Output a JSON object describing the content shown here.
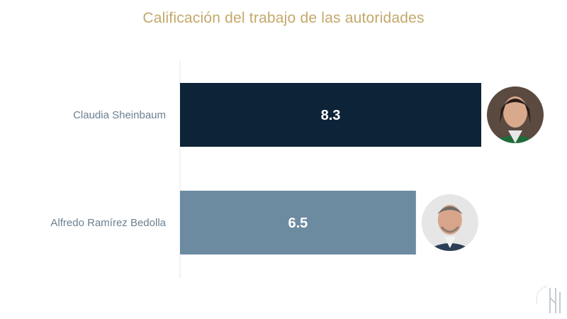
{
  "colors": {
    "title": "#c3a86a",
    "category_label": "#6b7f91",
    "bar_label": "#ffffff",
    "axis": "#e4e4e4",
    "logo": "#c8ccd0"
  },
  "chart_data": {
    "type": "bar",
    "orientation": "horizontal",
    "title": "Calificación del trabajo de las autoridades",
    "categories": [
      "Claudia Sheinbaum",
      "Alfredo Ramírez Bedolla"
    ],
    "values": [
      8.3,
      6.5
    ],
    "value_labels": [
      "8.3",
      "6.5"
    ],
    "bar_colors": [
      "#0d2338",
      "#6c8ba1"
    ],
    "xlim": [
      0,
      10
    ],
    "grid": false,
    "legend": "none",
    "annotations": [
      "avatar-photo",
      "avatar-photo"
    ]
  }
}
